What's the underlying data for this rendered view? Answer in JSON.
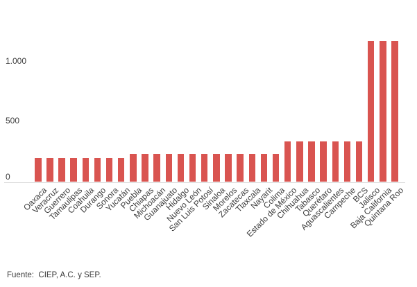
{
  "chart_data": {
    "type": "bar",
    "title": "",
    "xlabel": "",
    "ylabel": "",
    "categories": [
      "Oaxaca",
      "Veracruz",
      "Guerrero",
      "Tamaulipas",
      "Coahuila",
      "Durango",
      "Sonora",
      "Yucatán",
      "Puebla",
      "Chiapas",
      "Michoacán",
      "Guanajuato",
      "Hidalgo",
      "Nuevo León",
      "San Luis Potosí",
      "Sinaloa",
      "Morelos",
      "Zacatecas",
      "Tlaxcala",
      "Nayarit",
      "Colima",
      "Estado de México",
      "Chihuahua",
      "Tabasco",
      "Querétaro",
      "Aguascalientes",
      "Campeche",
      "BCS",
      "Jalisco",
      "Baja California",
      "Quintana Roo"
    ],
    "values": [
      200,
      200,
      200,
      200,
      200,
      200,
      200,
      200,
      230,
      230,
      230,
      230,
      230,
      230,
      230,
      230,
      230,
      230,
      230,
      230,
      230,
      340,
      340,
      340,
      340,
      340,
      340,
      340,
      1180,
      1180,
      1180
    ],
    "y_ticks": [
      {
        "value": 0,
        "label": "0"
      },
      {
        "value": 500,
        "label": "500"
      },
      {
        "value": 1000,
        "label": "1.000"
      }
    ],
    "ylim": [
      0,
      1250
    ],
    "grid": false,
    "legend": "none",
    "bar_color": "#d95450",
    "axis_line_color": "#d9d9d9",
    "label_color": "#3c3c3c"
  },
  "footer": {
    "source": "Fuente:  CIEP, A.C. y SEP."
  }
}
